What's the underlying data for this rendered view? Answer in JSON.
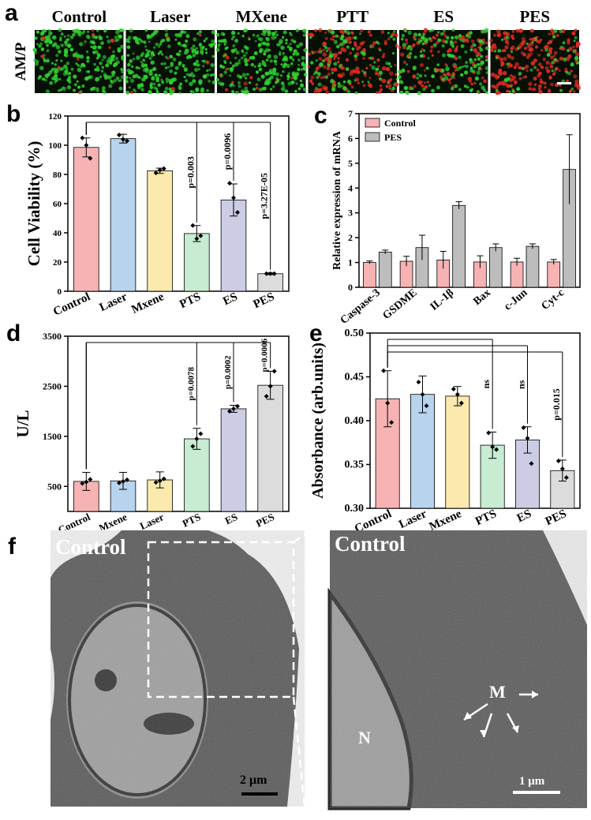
{
  "panel_labels": {
    "a": "a",
    "b": "b",
    "c": "c",
    "d": "d",
    "e": "e",
    "f": "f"
  },
  "panel_a": {
    "row_label": "AM/P",
    "columns": [
      "Control",
      "Laser",
      "MXene",
      "PTT",
      "ES",
      "PES"
    ],
    "colors": {
      "live": "#2fd02f",
      "dead": "#e02a20",
      "bg": "#061006"
    }
  },
  "chart_data": [
    {
      "panel": "b",
      "type": "bar",
      "categories": [
        "Control",
        "Laser",
        "Mxene",
        "PTS",
        "ES",
        "PES"
      ],
      "values": [
        98.5,
        104.5,
        82.5,
        39.5,
        62.5,
        12
      ],
      "errors": [
        6.5,
        3,
        1.8,
        5.5,
        11,
        0.6
      ],
      "points": [
        [
          105,
          100,
          91
        ],
        [
          107,
          104,
          103
        ],
        [
          81,
          83,
          84
        ],
        [
          45,
          36,
          38
        ],
        [
          74,
          64,
          54
        ],
        [
          12,
          12,
          12
        ]
      ],
      "colors": [
        "#f7b3b4",
        "#b8d3ee",
        "#fbe9ad",
        "#c7ecd1",
        "#cccde5",
        "#dcdcdc"
      ],
      "title": "",
      "xlabel": "",
      "ylabel": "Cell Viability (%)",
      "ylim": [
        0,
        120
      ],
      "yticks": [
        0,
        20,
        40,
        60,
        80,
        100,
        120
      ],
      "annotations": [
        {
          "text": "p=0.003",
          "category": "PTS"
        },
        {
          "text": "p=0.0096",
          "category": "ES"
        },
        {
          "text": "p=3.27E-05",
          "category": "PES"
        }
      ]
    },
    {
      "panel": "c",
      "type": "bar",
      "categories": [
        "Caspase-3",
        "GSDME",
        "IL-1β",
        "Bax",
        "c-Jun",
        "Cyt-c"
      ],
      "series": [
        {
          "name": "Control",
          "color": "#f7b3b4",
          "values": [
            1.0,
            1.05,
            1.1,
            1.02,
            1.02,
            1.02
          ],
          "errors": [
            0.06,
            0.2,
            0.35,
            0.25,
            0.15,
            0.1
          ],
          "points": [
            [
              0.95,
              1.0,
              1.05
            ],
            [
              0.9,
              1.05,
              1.2
            ],
            [
              0.75,
              1.1,
              1.45
            ],
            [
              0.85,
              1.0,
              1.25
            ],
            [
              0.9,
              1.0,
              1.15
            ],
            [
              0.95,
              1.0,
              1.1
            ]
          ]
        },
        {
          "name": "PES",
          "color": "#bdbdbd",
          "values": [
            1.42,
            1.6,
            3.3,
            1.6,
            1.65,
            4.75
          ],
          "errors": [
            0.08,
            0.5,
            0.15,
            0.15,
            0.1,
            1.4
          ],
          "points": [
            [
              1.35,
              1.45,
              1.5
            ],
            [
              1.4,
              1.45,
              2.1
            ],
            [
              3.2,
              3.3,
              3.45
            ],
            [
              1.5,
              1.6,
              1.75
            ],
            [
              1.55,
              1.65,
              1.7
            ],
            [
              3.5,
              4.3,
              6.15
            ]
          ]
        }
      ],
      "title": "",
      "xlabel": "",
      "ylabel": "Relative expression of mRNA",
      "ylim": [
        0,
        7
      ],
      "yticks": [
        0,
        1,
        2,
        3,
        4,
        5,
        6,
        7
      ],
      "legend": "top-left"
    },
    {
      "panel": "d",
      "type": "bar",
      "categories": [
        "Control",
        "Mxene",
        "Laser",
        "PTS",
        "ES",
        "PES"
      ],
      "values": [
        600,
        610,
        630,
        1450,
        2050,
        2520
      ],
      "errors": [
        180,
        170,
        160,
        210,
        70,
        280
      ],
      "points": [
        [
          560,
          590,
          640
        ],
        [
          570,
          600,
          630
        ],
        [
          580,
          610,
          650
        ],
        [
          1300,
          1450,
          1550
        ],
        [
          2000,
          2050,
          2100
        ],
        [
          2300,
          2500,
          2800
        ]
      ],
      "colors": [
        "#f7b3b4",
        "#b8d3ee",
        "#fbe9ad",
        "#c7ecd1",
        "#cccde5",
        "#dcdcdc"
      ],
      "title": "",
      "xlabel": "",
      "ylabel": "U/L",
      "ylim": [
        0,
        3500
      ],
      "yticks": [
        500,
        1500,
        2500,
        3500
      ],
      "annotations": [
        {
          "text": "p=0.0078",
          "category": "PTS"
        },
        {
          "text": "p=0.0002",
          "category": "ES"
        },
        {
          "text": "p=0.0006",
          "category": "PES"
        }
      ]
    },
    {
      "panel": "e",
      "type": "bar",
      "categories": [
        "Control",
        "Laser",
        "Mxene",
        "PTS",
        "ES",
        "PES"
      ],
      "values": [
        0.425,
        0.43,
        0.428,
        0.372,
        0.378,
        0.343
      ],
      "errors": [
        0.032,
        0.021,
        0.011,
        0.015,
        0.015,
        0.012
      ],
      "points": [
        [
          0.457,
          0.42,
          0.398
        ],
        [
          0.444,
          0.43,
          0.417
        ],
        [
          0.436,
          0.43,
          0.42
        ],
        [
          0.386,
          0.37,
          0.367
        ],
        [
          0.392,
          0.38,
          0.351
        ],
        [
          0.354,
          0.345,
          0.335
        ]
      ],
      "colors": [
        "#f7b3b4",
        "#b8d3ee",
        "#fbe9ad",
        "#c7ecd1",
        "#cccde5",
        "#dcdcdc"
      ],
      "title": "",
      "xlabel": "",
      "ylabel": "Absorbance (arb.units)",
      "ylim": [
        0.3,
        0.5
      ],
      "yticks": [
        0.3,
        0.35,
        0.4,
        0.45,
        0.5
      ],
      "annotations": [
        {
          "text": "ns",
          "category": "PTS"
        },
        {
          "text": "ns",
          "category": "ES"
        },
        {
          "text": "p=0.015",
          "category": "PES"
        }
      ]
    }
  ],
  "panel_f": {
    "left_label": "Control",
    "right_label": "Control",
    "left_scale": "2 μm",
    "right_scale": "1 μm",
    "nucleus_label": "N",
    "mito_label": "M"
  }
}
